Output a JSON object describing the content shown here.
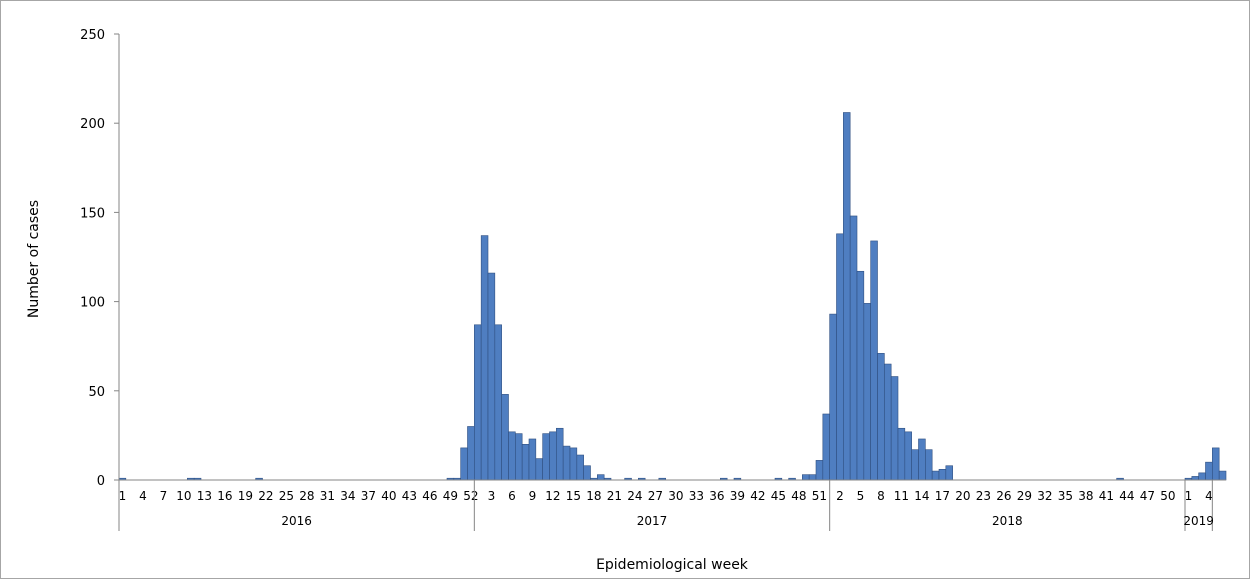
{
  "chart_data": {
    "type": "bar",
    "title": "",
    "xlabel": "Epidemiological week",
    "ylabel": "Number of cases",
    "ylim": [
      0,
      250
    ],
    "yticks": [
      0,
      50,
      100,
      150,
      200,
      250
    ],
    "grid": false,
    "legend": "none",
    "bar_color": "#4f7ec1",
    "bar_edge_color": "#2f4f80",
    "years": [
      {
        "label": "2016",
        "weeks": 52
      },
      {
        "label": "2017",
        "weeks": 52
      },
      {
        "label": "2018",
        "weeks": 52
      },
      {
        "label": "2019",
        "weeks": 4
      }
    ],
    "week_tick_labels": [
      {
        "year": "2016",
        "weeks": [
          1,
          4,
          7,
          10,
          13,
          16,
          19,
          22,
          25,
          28,
          31,
          34,
          37,
          40,
          43,
          46,
          49,
          52
        ]
      },
      {
        "year": "2017",
        "weeks": [
          3,
          6,
          9,
          12,
          15,
          18,
          21,
          24,
          27,
          30,
          33,
          36,
          39,
          42,
          45,
          48,
          51
        ]
      },
      {
        "year": "2018",
        "weeks": [
          2,
          5,
          8,
          11,
          14,
          17,
          20,
          23,
          26,
          29,
          32,
          35,
          38,
          41,
          44,
          47,
          50
        ]
      },
      {
        "year": "2019",
        "weeks": [
          1,
          4
        ]
      }
    ],
    "series": [
      {
        "values": [
          1,
          0,
          0,
          0,
          0,
          0,
          0,
          0,
          0,
          0,
          1,
          1,
          0,
          0,
          0,
          0,
          0,
          0,
          0,
          0,
          1,
          0,
          0,
          0,
          0,
          0,
          0,
          0,
          0,
          0,
          0,
          0,
          0,
          0,
          0,
          0,
          0,
          0,
          0,
          0,
          0,
          0,
          0,
          0,
          0,
          0,
          0,
          0,
          1,
          1,
          18,
          30,
          87,
          137,
          116,
          87,
          48,
          27,
          26,
          20,
          23,
          12,
          26,
          27,
          29,
          19,
          18,
          14,
          8,
          1,
          3,
          1,
          0,
          0,
          1,
          0,
          1,
          0,
          0,
          1,
          0,
          0,
          0,
          0,
          0,
          0,
          0,
          0,
          1,
          0,
          1,
          0,
          0,
          0,
          0,
          0,
          1,
          0,
          1,
          0,
          3,
          3,
          11,
          37,
          93,
          138,
          206,
          148,
          117,
          99,
          134,
          71,
          65,
          58,
          29,
          27,
          17,
          23,
          17,
          5,
          6,
          8,
          0,
          0,
          0,
          0,
          0,
          0,
          0,
          0,
          0,
          0,
          0,
          0,
          0,
          0,
          0,
          0,
          0,
          0,
          0,
          0,
          0,
          0,
          0,
          0,
          1,
          0,
          0,
          0,
          0,
          0,
          0,
          0,
          0,
          0,
          1,
          2,
          4,
          10,
          18,
          5
        ]
      }
    ]
  }
}
